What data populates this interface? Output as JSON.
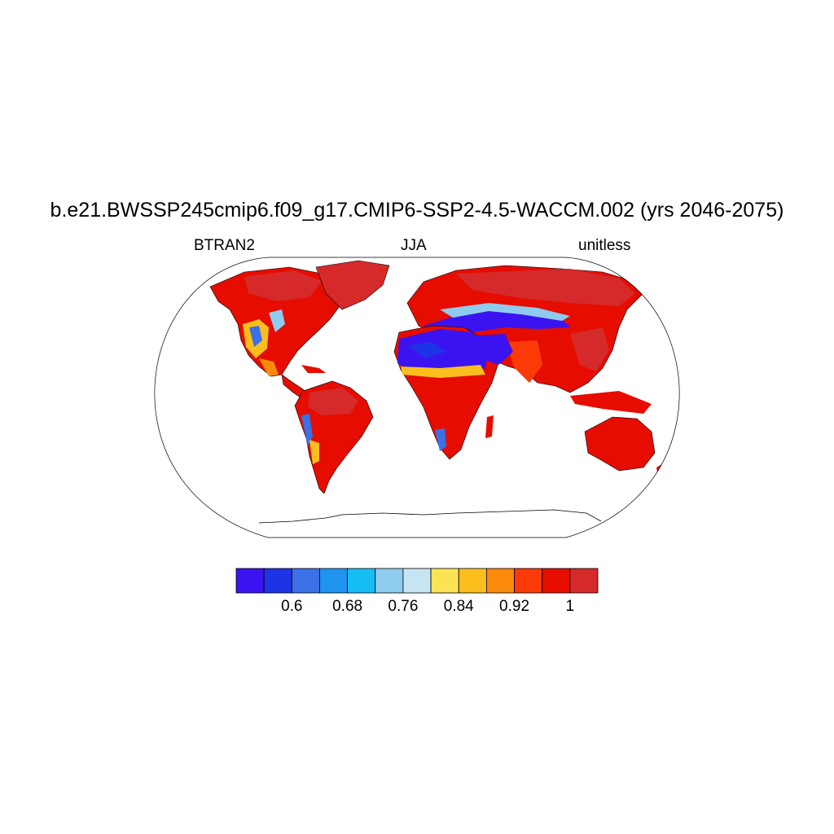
{
  "title": "b.e21.BWSSP245cmip6.f09_g17.CMIP6-SSP2-4.5-WACCM.002 (yrs 2046-2075)",
  "subtitle_left": "BTRAN2",
  "subtitle_center": "JJA",
  "subtitle_right": "unitless",
  "map": {
    "projection": "Robinson",
    "region": "global",
    "ocean_color": "#ffffff",
    "coastlines": true,
    "dominant_value_color": "#e60c00",
    "dry_regions": [
      "Sahara",
      "Arabian Peninsula",
      "Central Asia",
      "Western United States",
      "Southern South America"
    ],
    "wet_regions": [
      "Boreal North America",
      "Northern Eurasia",
      "Tropical South America",
      "Central Africa",
      "Southeast Asia",
      "Australia"
    ]
  },
  "legend": {
    "colors": [
      "#3b13f0",
      "#1f33e6",
      "#3b70e6",
      "#1f94f0",
      "#17bef5",
      "#8fcbee",
      "#c7e4f5",
      "#fbe454",
      "#fbbe1c",
      "#fb8a0a",
      "#fb3a08",
      "#e60c00",
      "#d62a2a"
    ],
    "labels": [
      "0.6",
      "0.68",
      "0.76",
      "0.84",
      "0.92",
      "1"
    ]
  }
}
